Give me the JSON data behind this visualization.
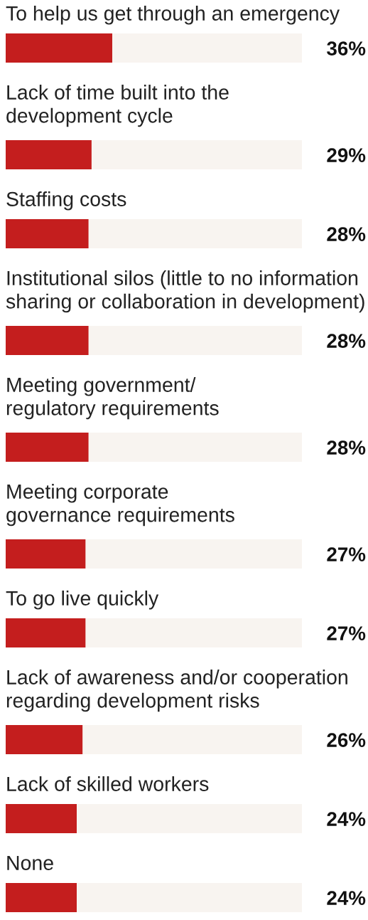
{
  "chart_data": {
    "type": "bar",
    "orientation": "horizontal",
    "stacked": true,
    "tick_labels": false,
    "xlim": [
      0,
      100
    ],
    "categories": [
      "To help us get through an emergency",
      "Lack of time built into the\ndevelopment cycle",
      "Staffing costs",
      "Institutional silos (little to no information\nsharing or collaboration in development)",
      "Meeting government/\nregulatory requirements",
      "Meeting corporate\ngovernance requirements",
      "To go live quickly",
      "Lack of awareness and/or cooperation\nregarding development risks",
      "Lack of skilled workers",
      "None"
    ],
    "series": [
      {
        "color": "#c41e1e",
        "values": [
          36,
          29,
          28,
          28,
          28,
          27,
          27,
          26,
          24,
          24
        ],
        "value_labels": [
          "36%",
          "29%",
          "28%",
          "28%",
          "28%",
          "27%",
          "27%",
          "26%",
          "24%",
          "24%"
        ]
      },
      {
        "color": "#f8f4f0",
        "values": [
          64,
          71,
          72,
          72,
          72,
          73,
          73,
          74,
          76,
          76
        ]
      }
    ]
  }
}
